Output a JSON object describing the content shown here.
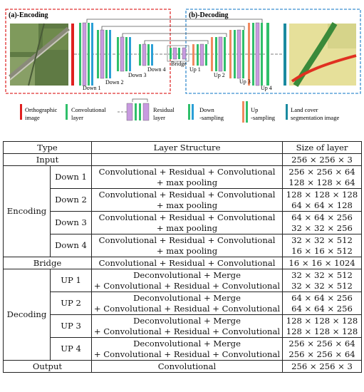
{
  "figure": {
    "encoding_label": "(a)-Encoding",
    "decoding_label": "(b)-Decoding",
    "stage_labels": [
      "Down 1",
      "Down 2",
      "Down 3",
      "Down 4",
      "Bridge",
      "Up 1",
      "Up 2",
      "Up 3",
      "Up 4"
    ],
    "legend": [
      {
        "line1": "Orthographic",
        "line2": "image",
        "icon": "red-bar-icon"
      },
      {
        "line1": "Convolutional",
        "line2": "layer",
        "icon": "green-bar-icon"
      },
      {
        "line1": "Residual",
        "line2": "layer",
        "icon": "residual-block-icon"
      },
      {
        "line1": "Down",
        "line2": "-sampling",
        "icon": "down-sampling-icon"
      },
      {
        "line1": "Up",
        "line2": "-sampling",
        "icon": "up-sampling-icon"
      },
      {
        "line1": "Land cover",
        "line2": "segmentation image",
        "icon": "teal-bar-icon"
      }
    ],
    "colors": {
      "ortho": "#e02020",
      "conv": "#2fbf6a",
      "residual": "#c89ae0",
      "down": "#2a9fd6",
      "up": "#f08a60",
      "seg": "#1a8aa0",
      "enc_box": "#e03030",
      "dec_box": "#3a8fd0"
    }
  },
  "table": {
    "header": {
      "type": "Type",
      "structure": "Layer Structure",
      "size": "Size of layer"
    },
    "input": {
      "label": "Input",
      "size": "256 × 256 × 3"
    },
    "encoding": {
      "label": "Encoding",
      "rows": [
        {
          "name": "Down 1",
          "s1": "Convolutional + Residual + Convolutional",
          "s2": "+ max pooling",
          "z1": "256 × 256 × 64",
          "z2": "128 × 128 × 64"
        },
        {
          "name": "Down 2",
          "s1": "Convolutional + Residual + Convolutional",
          "s2": "+ max pooling",
          "z1": "128 × 128 × 128",
          "z2": "64 × 64 × 128"
        },
        {
          "name": "Down 3",
          "s1": "Convolutional + Residual + Convolutional",
          "s2": "+ max pooling",
          "z1": "64 × 64 × 256",
          "z2": "32 × 32 × 256"
        },
        {
          "name": "Down 4",
          "s1": "Convolutional + Residual + Convolutional",
          "s2": "+ max pooling",
          "z1": "32 × 32 × 512",
          "z2": "16 × 16 × 512"
        }
      ]
    },
    "bridge": {
      "label": "Bridge",
      "structure": "Convolutional + Residual + Convolutional",
      "size": "16 × 16 × 1024"
    },
    "decoding": {
      "label": "Decoding",
      "rows": [
        {
          "name": "UP 1",
          "s1": "Deconvolutional + Merge",
          "s2": "+ Convolutional + Residual + Convolutional",
          "z1": "32 × 32 × 512",
          "z2": "32 × 32 × 512"
        },
        {
          "name": "UP 2",
          "s1": "Deconvolutional + Merge",
          "s2": "+ Convolutional + Residual + Convolutional",
          "z1": "64 × 64 × 256",
          "z2": "64 × 64 × 256"
        },
        {
          "name": "UP 3",
          "s1": "Deconvolutional + Merge",
          "s2": "+ Convolutional + Residual + Convolutional",
          "z1": "128 × 128 × 128",
          "z2": "128 × 128 × 128"
        },
        {
          "name": "UP 4",
          "s1": "Deconvolutional + Merge",
          "s2": "+ Convolutional + Residual + Convolutional",
          "z1": "256 × 256 × 64",
          "z2": "256 × 256 × 64"
        }
      ]
    },
    "output": {
      "label": "Output",
      "structure": "Convolutional",
      "size": "256 × 256 × 3"
    }
  }
}
